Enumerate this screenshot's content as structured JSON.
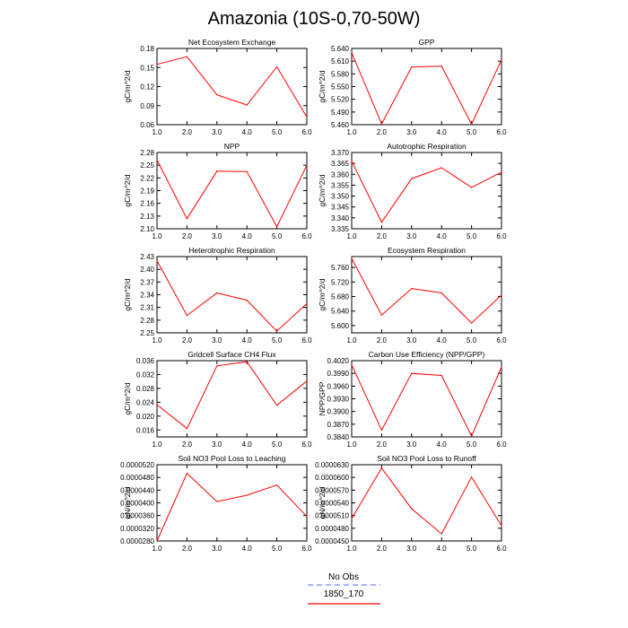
{
  "figure": {
    "title": "Amazonia (10S-0,70-50W)",
    "legend": [
      {
        "label": "No Obs",
        "color": "#8080ff",
        "dash": true
      },
      {
        "label": "1850_170",
        "color": "#ff0000",
        "dash": false
      }
    ],
    "line_color": "#ff0000"
  },
  "chart_data": [
    {
      "type": "line",
      "title": "Net Ecosystem Exchange",
      "ylabel": "gC/m^2/d",
      "x": [
        1,
        2,
        3,
        4,
        5,
        6
      ],
      "ylim": [
        0.06,
        0.18
      ],
      "yticks": [
        "0.06",
        "0.09",
        "0.12",
        "0.15",
        "0.18"
      ],
      "xticks": [
        "1.0",
        "2.0",
        "3.0",
        "4.0",
        "5.0",
        "6.0"
      ],
      "series": [
        {
          "values": [
            0.155,
            0.167,
            0.107,
            0.091,
            0.151,
            0.072
          ]
        }
      ]
    },
    {
      "type": "line",
      "title": "GPP",
      "ylabel": "gC/m^2/d",
      "x": [
        1,
        2,
        3,
        4,
        5,
        6
      ],
      "ylim": [
        5.46,
        5.64
      ],
      "yticks": [
        "5.460",
        "5.490",
        "5.520",
        "5.550",
        "5.580",
        "5.610",
        "5.640"
      ],
      "xticks": [
        "1.0",
        "2.0",
        "3.0",
        "4.0",
        "5.0",
        "6.0"
      ],
      "series": [
        {
          "values": [
            5.63,
            5.462,
            5.596,
            5.598,
            5.461,
            5.613
          ]
        }
      ]
    },
    {
      "type": "line",
      "title": "NPP",
      "ylabel": "gC/m^2/d",
      "x": [
        1,
        2,
        3,
        4,
        5,
        6
      ],
      "ylim": [
        2.1,
        2.28
      ],
      "yticks": [
        "2.10",
        "2.13",
        "2.16",
        "2.19",
        "2.22",
        "2.25",
        "2.28"
      ],
      "xticks": [
        "1.0",
        "2.0",
        "3.0",
        "4.0",
        "5.0",
        "6.0"
      ],
      "series": [
        {
          "values": [
            2.262,
            2.124,
            2.236,
            2.235,
            2.105,
            2.25
          ]
        }
      ]
    },
    {
      "type": "line",
      "title": "Autotrophic Respiration",
      "ylabel": "gC/m^2/d",
      "x": [
        1,
        2,
        3,
        4,
        5,
        6
      ],
      "ylim": [
        3.335,
        3.37
      ],
      "yticks": [
        "3.335",
        "3.340",
        "3.345",
        "3.350",
        "3.355",
        "3.360",
        "3.365",
        "3.370"
      ],
      "xticks": [
        "1.0",
        "2.0",
        "3.0",
        "4.0",
        "5.0",
        "6.0"
      ],
      "series": [
        {
          "values": [
            3.366,
            3.338,
            3.358,
            3.363,
            3.354,
            3.361
          ]
        }
      ]
    },
    {
      "type": "line",
      "title": "Heterotrophic Respiration",
      "ylabel": "gC/m^2/d",
      "x": [
        1,
        2,
        3,
        4,
        5,
        6
      ],
      "ylim": [
        2.25,
        2.43
      ],
      "yticks": [
        "2.25",
        "2.28",
        "2.31",
        "2.34",
        "2.37",
        "2.40",
        "2.43"
      ],
      "xticks": [
        "1.0",
        "2.0",
        "3.0",
        "4.0",
        "5.0",
        "6.0"
      ],
      "series": [
        {
          "values": [
            2.42,
            2.291,
            2.344,
            2.327,
            2.254,
            2.319
          ]
        }
      ]
    },
    {
      "type": "line",
      "title": "Ecosystem Respiration",
      "ylabel": "gC/m^2/d",
      "x": [
        1,
        2,
        3,
        4,
        5,
        6
      ],
      "ylim": [
        5.58,
        5.79
      ],
      "yticks": [
        "5.600",
        "5.640",
        "5.680",
        "5.720",
        "5.760"
      ],
      "xticks": [
        "1.0",
        "2.0",
        "3.0",
        "4.0",
        "5.0",
        "6.0"
      ],
      "series": [
        {
          "values": [
            5.785,
            5.629,
            5.702,
            5.69,
            5.607,
            5.684
          ]
        }
      ]
    },
    {
      "type": "line",
      "title": "Gridcell Surface CH4 Flux",
      "ylabel": "gC/m^2/d",
      "x": [
        1,
        2,
        3,
        4,
        5,
        6
      ],
      "ylim": [
        0.014,
        0.036
      ],
      "yticks": [
        "0.016",
        "0.020",
        "0.024",
        "0.028",
        "0.032",
        "0.036"
      ],
      "xticks": [
        "1.0",
        "2.0",
        "3.0",
        "4.0",
        "5.0",
        "6.0"
      ],
      "series": [
        {
          "values": [
            0.0233,
            0.0164,
            0.0345,
            0.0357,
            0.0231,
            0.0301
          ]
        }
      ]
    },
    {
      "type": "line",
      "title": "Carbon Use Efficiency (NPP/GPP)",
      "ylabel": "NPP/GPP",
      "x": [
        1,
        2,
        3,
        4,
        5,
        6
      ],
      "ylim": [
        0.384,
        0.402
      ],
      "yticks": [
        "0.3840",
        "0.3870",
        "0.3900",
        "0.3930",
        "0.3960",
        "0.3990",
        "0.4020"
      ],
      "xticks": [
        "1.0",
        "2.0",
        "3.0",
        "4.0",
        "5.0",
        "6.0"
      ],
      "series": [
        {
          "values": [
            0.401,
            0.3856,
            0.399,
            0.3985,
            0.3842,
            0.4005
          ]
        }
      ]
    },
    {
      "type": "line",
      "title": "Soil NO3 Pool Loss to Leaching",
      "ylabel": "gN/m^2/d",
      "x": [
        1,
        2,
        3,
        4,
        5,
        6
      ],
      "ylim": [
        2.8e-05,
        5.2e-05
      ],
      "yticks": [
        "0.0000280",
        "0.0000320",
        "0.0000360",
        "0.0000400",
        "0.0000440",
        "0.0000480",
        "0.0000520"
      ],
      "xticks": [
        "1.0",
        "2.0",
        "3.0",
        "4.0",
        "5.0",
        "6.0"
      ],
      "series": [
        {
          "values": [
            2.8e-05,
            4.93e-05,
            4.04e-05,
            4.24e-05,
            4.56e-05,
            3.57e-05
          ]
        }
      ]
    },
    {
      "type": "line",
      "title": "Soil NO3 Pool Loss to Runoff",
      "ylabel": "gN/m^2/d",
      "x": [
        1,
        2,
        3,
        4,
        5,
        6
      ],
      "ylim": [
        4.5e-05,
        6.3e-05
      ],
      "yticks": [
        "0.0000450",
        "0.0000480",
        "0.0000510",
        "0.0000540",
        "0.0000570",
        "0.0000600",
        "0.0000630"
      ],
      "xticks": [
        "1.0",
        "2.0",
        "3.0",
        "4.0",
        "5.0",
        "6.0"
      ],
      "series": [
        {
          "values": [
            5.03e-05,
            6.22e-05,
            5.26e-05,
            4.67e-05,
            6.01e-05,
            4.86e-05
          ]
        }
      ]
    }
  ]
}
